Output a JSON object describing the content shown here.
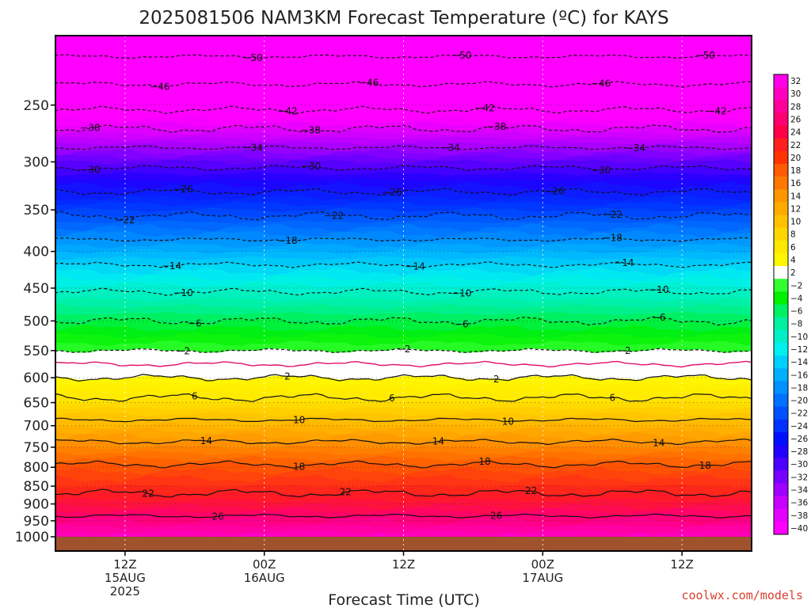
{
  "title": "2025081506 NAM3KM Forecast Temperature (ºC) for KAYS",
  "credit": "coolwx.com/models",
  "colors": {
    "credit": "#d8402f",
    "ground": "#a0522d",
    "grid": "#d0d0d0",
    "frame": "#000000"
  },
  "chart_data": {
    "type": "heatmap",
    "title": "2025081506 NAM3KM Forecast Temperature (ºC) for KAYS",
    "xlabel": "Forecast Time (UTC)",
    "ylabel": "",
    "y_scale": "log",
    "y_inverted": true,
    "y_ticks": [
      250,
      300,
      350,
      400,
      450,
      500,
      550,
      600,
      650,
      700,
      750,
      800,
      850,
      900,
      950,
      1000
    ],
    "y_tick_labels": [
      "250",
      "300",
      "350",
      "400",
      "450",
      "500",
      "550",
      "600",
      "650",
      "700",
      "750",
      "800",
      "850",
      "900",
      "950",
      "1000"
    ],
    "ylim": [
      1000,
      200
    ],
    "x_range_hours": [
      6,
      66
    ],
    "x_ticks": [
      {
        "hour": 12,
        "lines": [
          "12Z",
          "15AUG",
          "2025"
        ]
      },
      {
        "hour": 24,
        "lines": [
          "00Z",
          "16AUG"
        ]
      },
      {
        "hour": 36,
        "lines": [
          "12Z"
        ]
      },
      {
        "hour": 48,
        "lines": [
          "00Z",
          "17AUG"
        ]
      },
      {
        "hour": 60,
        "lines": [
          "12Z"
        ]
      }
    ],
    "grid": "dotted",
    "colorbar": {
      "placement": "right",
      "levels": [
        32,
        30,
        28,
        26,
        24,
        22,
        20,
        18,
        16,
        14,
        12,
        10,
        8,
        6,
        4,
        2,
        -2,
        -4,
        -6,
        -8,
        -10,
        -12,
        -14,
        -16,
        -18,
        -20,
        -22,
        -24,
        -26,
        -28,
        -30,
        -32,
        -34,
        -36,
        -38,
        -40
      ],
      "labels": [
        "32",
        "30",
        "28",
        "26",
        "24",
        "22",
        "20",
        "18",
        "16",
        "14",
        "12",
        "10",
        "8",
        "6",
        "4",
        "2",
        "−2",
        "−4",
        "−6",
        "−8",
        "−10",
        "−12",
        "−14",
        "−16",
        "−18",
        "−20",
        "−22",
        "−24",
        "−26",
        "−28",
        "−30",
        "−32",
        "−34",
        "−36",
        "−38",
        "−40"
      ],
      "colors": [
        "#ff00e8",
        "#ff00c0",
        "#ff0098",
        "#ff0070",
        "#ff0048",
        "#ff1e1e",
        "#ff3200",
        "#ff5a00",
        "#ff7800",
        "#ff9600",
        "#ffaa00",
        "#ffc000",
        "#ffd600",
        "#ffe800",
        "#fff600",
        "#ffffff",
        "#32ff32",
        "#00f000",
        "#00f064",
        "#00f0a0",
        "#00f0c8",
        "#00f0f0",
        "#00d0ff",
        "#00b0ff",
        "#0090ff",
        "#0070ff",
        "#0050ff",
        "#0030ff",
        "#0010ff",
        "#2000ff",
        "#4c00ff",
        "#7800ff",
        "#a000ff",
        "#c800ff",
        "#e600ff",
        "#ff00ff"
      ]
    },
    "profile": [
      {
        "pressure": 200,
        "temp": -53
      },
      {
        "pressure": 250,
        "temp": -43
      },
      {
        "pressure": 300,
        "temp": -31
      },
      {
        "pressure": 350,
        "temp": -23
      },
      {
        "pressure": 400,
        "temp": -16
      },
      {
        "pressure": 450,
        "temp": -10.5
      },
      {
        "pressure": 500,
        "temp": -6
      },
      {
        "pressure": 550,
        "temp": -2
      },
      {
        "pressure": 600,
        "temp": 2
      },
      {
        "pressure": 650,
        "temp": 7
      },
      {
        "pressure": 700,
        "temp": 11
      },
      {
        "pressure": 750,
        "temp": 15
      },
      {
        "pressure": 800,
        "temp": 18.5
      },
      {
        "pressure": 850,
        "temp": 21
      },
      {
        "pressure": 900,
        "temp": 23.5
      },
      {
        "pressure": 950,
        "temp": 27
      },
      {
        "pressure": 1000,
        "temp": 30
      }
    ],
    "contours": [
      {
        "level": 50,
        "label": "−50",
        "style": "dashed",
        "label_hours": [
          23,
          41,
          62
        ]
      },
      {
        "level": 46,
        "label": "−46",
        "style": "dashed",
        "label_hours": [
          15,
          33,
          53
        ]
      },
      {
        "level": 42,
        "label": "−42",
        "style": "dashed",
        "label_hours": [
          26,
          43,
          63
        ]
      },
      {
        "level": 38,
        "label": "−38",
        "style": "dashed",
        "label_hours": [
          9,
          28,
          44
        ]
      },
      {
        "level": 34,
        "label": "−34",
        "style": "dashed",
        "label_hours": [
          23,
          40,
          56
        ]
      },
      {
        "level": 30,
        "label": "−30",
        "style": "dashed",
        "label_hours": [
          9,
          28,
          53
        ]
      },
      {
        "level": 26,
        "label": "−26",
        "style": "dashed",
        "label_hours": [
          17,
          35,
          49
        ]
      },
      {
        "level": 22,
        "label": "−22",
        "style": "dashed",
        "label_hours": [
          12,
          30,
          54
        ]
      },
      {
        "level": 18,
        "label": "−18",
        "style": "dashed",
        "label_hours": [
          26,
          54
        ]
      },
      {
        "level": 14,
        "label": "−14",
        "style": "dashed",
        "label_hours": [
          16,
          37,
          55
        ]
      },
      {
        "level": 10,
        "label": "−10",
        "style": "dashed",
        "label_hours": [
          17,
          41,
          58
        ]
      },
      {
        "level": 6,
        "label": "−6",
        "style": "dashed",
        "label_hours": [
          18,
          41,
          58
        ]
      },
      {
        "level": 2,
        "label": "−2",
        "style": "dashed",
        "label_hours": [
          17,
          36,
          55
        ]
      },
      {
        "level": 0,
        "label": "",
        "style": "freezing",
        "label_hours": []
      },
      {
        "level": 2,
        "label": "2",
        "style": "solid",
        "label_hours": [
          26,
          44
        ]
      },
      {
        "level": 6,
        "label": "6",
        "style": "solid",
        "label_hours": [
          18,
          35,
          54
        ]
      },
      {
        "level": 10,
        "label": "10",
        "style": "solid",
        "label_hours": [
          27,
          45
        ]
      },
      {
        "level": 14,
        "label": "14",
        "style": "solid",
        "label_hours": [
          19,
          39,
          58
        ]
      },
      {
        "level": 18,
        "label": "18",
        "style": "solid",
        "label_hours": [
          27,
          43,
          62
        ]
      },
      {
        "level": 22,
        "label": "22",
        "style": "solid",
        "label_hours": [
          14,
          31,
          47
        ]
      },
      {
        "level": 26,
        "label": "26",
        "style": "solid",
        "label_hours": [
          20,
          44
        ]
      }
    ]
  }
}
